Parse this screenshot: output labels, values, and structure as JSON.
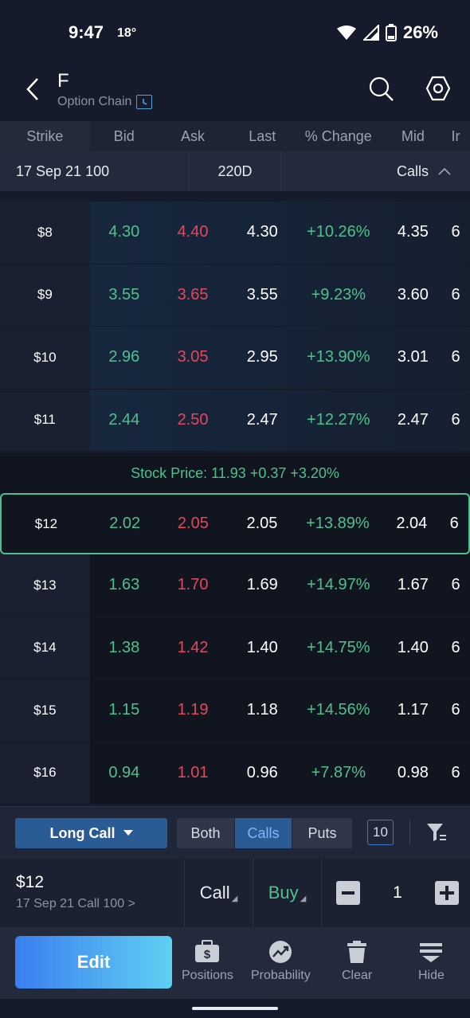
{
  "status_bar": {
    "time": "9:47",
    "temperature": "18°",
    "battery": "26%"
  },
  "header": {
    "symbol": "F",
    "subtitle": "Option Chain"
  },
  "columns": {
    "strike": "Strike",
    "bid": "Bid",
    "ask": "Ask",
    "last": "Last",
    "change": "% Change",
    "mid": "Mid",
    "iv": "Ir"
  },
  "expiry": {
    "date": "17 Sep 21 100",
    "days": "220D",
    "side": "Calls"
  },
  "rows_itm": [
    {
      "strike": "$8",
      "bid": "4.30",
      "ask": "4.40",
      "last": "4.30",
      "change": "+10.26%",
      "mid": "4.35",
      "iv": "6"
    },
    {
      "strike": "$9",
      "bid": "3.55",
      "ask": "3.65",
      "last": "3.55",
      "change": "+9.23%",
      "mid": "3.60",
      "iv": "6"
    },
    {
      "strike": "$10",
      "bid": "2.96",
      "ask": "3.05",
      "last": "2.95",
      "change": "+13.90%",
      "mid": "3.01",
      "iv": "6"
    },
    {
      "strike": "$11",
      "bid": "2.44",
      "ask": "2.50",
      "last": "2.47",
      "change": "+12.27%",
      "mid": "2.47",
      "iv": "6"
    }
  ],
  "stock_price": "Stock Price: 11.93 +0.37 +3.20%",
  "selected_row": {
    "strike": "$12",
    "bid": "2.02",
    "ask": "2.05",
    "last": "2.05",
    "change": "+13.89%",
    "mid": "2.04",
    "iv": "6"
  },
  "rows_otm": [
    {
      "strike": "$13",
      "bid": "1.63",
      "ask": "1.70",
      "last": "1.69",
      "change": "+14.97%",
      "mid": "1.67",
      "iv": "6"
    },
    {
      "strike": "$14",
      "bid": "1.38",
      "ask": "1.42",
      "last": "1.40",
      "change": "+14.75%",
      "mid": "1.40",
      "iv": "6"
    },
    {
      "strike": "$15",
      "bid": "1.15",
      "ask": "1.19",
      "last": "1.18",
      "change": "+14.56%",
      "mid": "1.17",
      "iv": "6"
    },
    {
      "strike": "$16",
      "bid": "0.94",
      "ask": "1.01",
      "last": "0.96",
      "change": "+7.87%",
      "mid": "0.98",
      "iv": "6"
    }
  ],
  "controls": {
    "strategy": "Long Call",
    "both": "Both",
    "calls": "Calls",
    "puts": "Puts",
    "strike_count": "10"
  },
  "order": {
    "price": "$12",
    "description": "17 Sep 21 Call 100 >",
    "type": "Call",
    "side": "Buy",
    "quantity": "1"
  },
  "nav": {
    "edit": "Edit",
    "positions": "Positions",
    "probability": "Probability",
    "clear": "Clear",
    "hide": "Hide"
  },
  "colors": {
    "bid": "#4fc08d",
    "ask": "#e5475d",
    "accent": "#2b5b95",
    "selected_border": "#4fc08d"
  }
}
